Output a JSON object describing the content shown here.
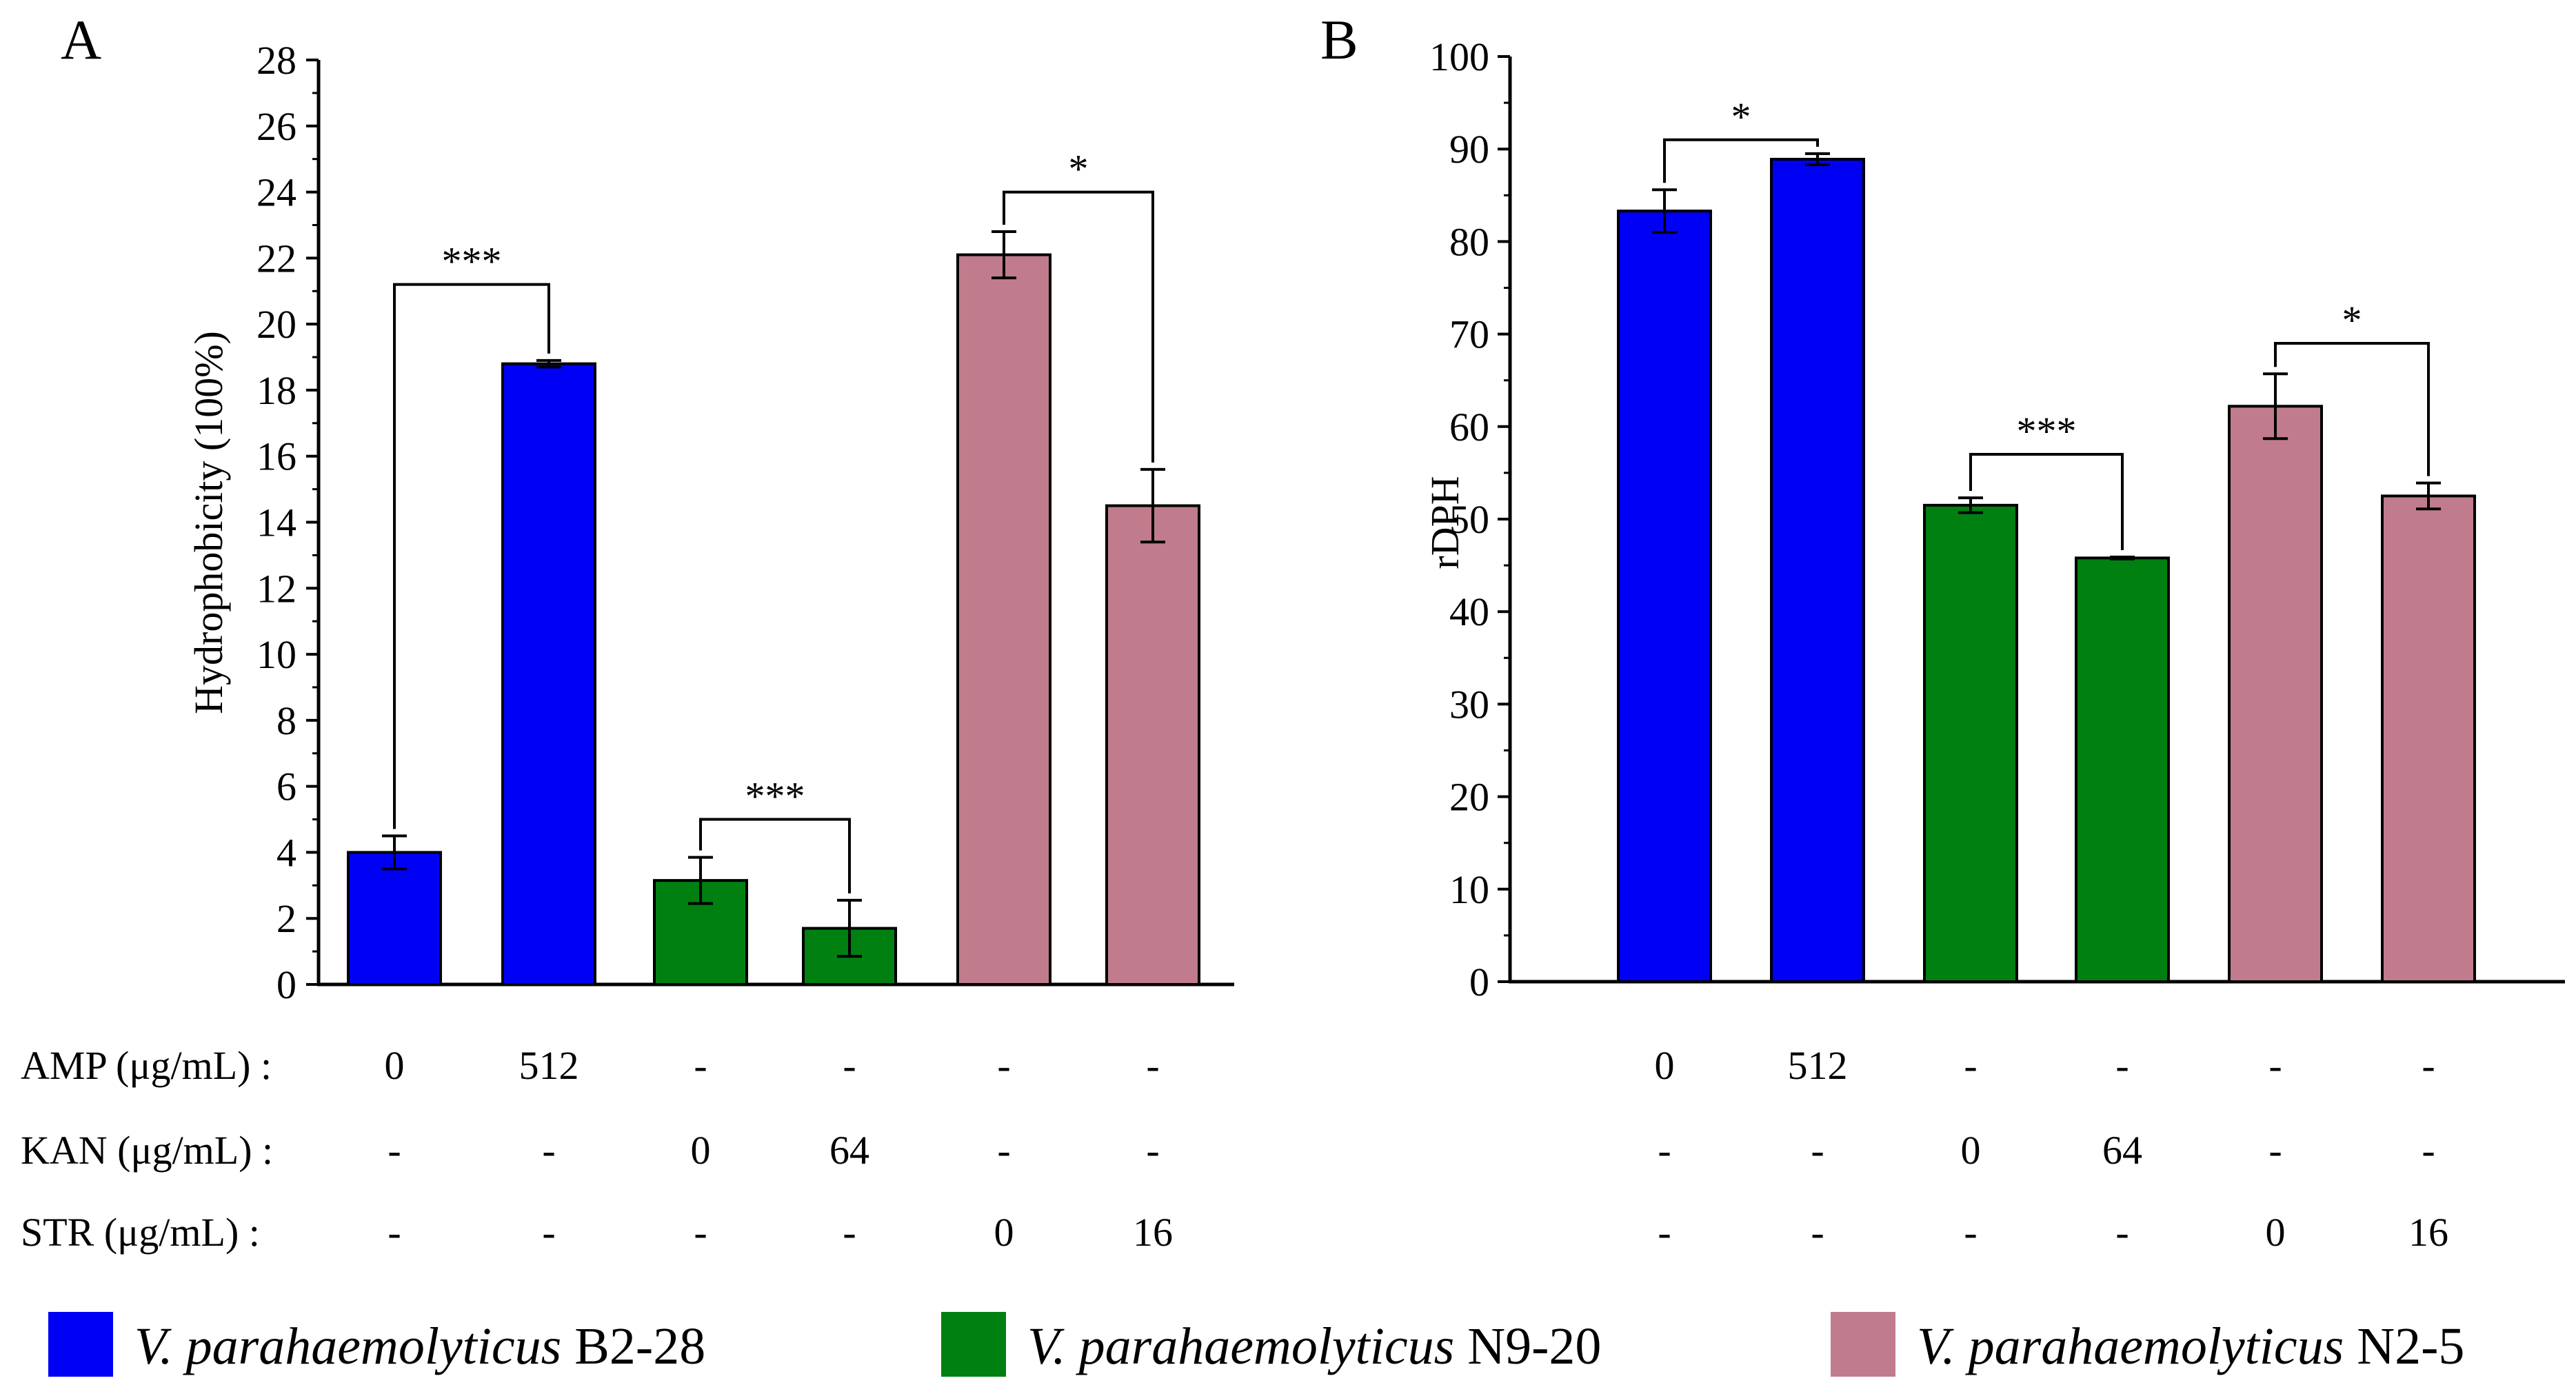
{
  "chart_data": [
    {
      "panel": "A",
      "type": "bar",
      "ylabel": "Hydrophobicity (100%)",
      "xlabel": "",
      "ylim": [
        0,
        28
      ],
      "yticks": [
        0,
        2,
        4,
        6,
        8,
        10,
        12,
        14,
        16,
        18,
        20,
        22,
        24,
        26,
        28
      ],
      "grid": false,
      "bars": [
        {
          "strain": "B2-28",
          "value": 4.0,
          "error": 0.5
        },
        {
          "strain": "B2-28",
          "value": 18.8,
          "error": 0.1
        },
        {
          "strain": "N9-20",
          "value": 3.15,
          "error": 0.7
        },
        {
          "strain": "N9-20",
          "value": 1.7,
          "error": 0.85
        },
        {
          "strain": "N2-5",
          "value": 22.1,
          "error": 0.7
        },
        {
          "strain": "N2-5",
          "value": 14.5,
          "error": 1.1
        }
      ],
      "significance": [
        {
          "from": 0,
          "to": 1,
          "label": "***",
          "level": 21.2
        },
        {
          "from": 2,
          "to": 3,
          "label": "***",
          "level": 5.0
        },
        {
          "from": 4,
          "to": 5,
          "label": "*",
          "level": 24.0
        }
      ]
    },
    {
      "panel": "B",
      "type": "bar",
      "ylabel": "rDPH",
      "xlabel": "",
      "ylim": [
        0,
        100
      ],
      "yticks": [
        0,
        10,
        20,
        30,
        40,
        50,
        60,
        70,
        80,
        90,
        100
      ],
      "grid": false,
      "bars": [
        {
          "strain": "B2-28",
          "value": 83.3,
          "error": 2.3
        },
        {
          "strain": "B2-28",
          "value": 88.9,
          "error": 0.6
        },
        {
          "strain": "N9-20",
          "value": 51.5,
          "error": 0.8
        },
        {
          "strain": "N9-20",
          "value": 45.8,
          "error": 0.1
        },
        {
          "strain": "N2-5",
          "value": 62.2,
          "error": 3.5
        },
        {
          "strain": "N2-5",
          "value": 52.5,
          "error": 1.4
        }
      ],
      "significance": [
        {
          "from": 0,
          "to": 1,
          "label": "*",
          "level": 91.0
        },
        {
          "from": 2,
          "to": 3,
          "label": "***",
          "level": 57.0
        },
        {
          "from": 4,
          "to": 5,
          "label": "*",
          "level": 69.0
        }
      ]
    }
  ],
  "conditions": [
    {
      "label": "AMP (μg/mL) :",
      "values": [
        "0",
        "512",
        "-",
        "-",
        "-",
        "-"
      ]
    },
    {
      "label": "KAN (μg/mL) :",
      "values": [
        "-",
        "-",
        "0",
        "64",
        "-",
        "-"
      ]
    },
    {
      "label": "STR  (μg/mL) :",
      "values": [
        "-",
        "-",
        "-",
        "-",
        "0",
        "16"
      ]
    }
  ],
  "legend": [
    {
      "species": "V. parahaemolyticus",
      "strain": "B2-28",
      "color": "#0000f5"
    },
    {
      "species": "V. parahaemolyticus",
      "strain": "N9-20",
      "color": "#008010"
    },
    {
      "species": "V. parahaemolyticus",
      "strain": "N2-5",
      "color": "#c07c8c"
    }
  ],
  "colors": {
    "B2-28": "#0000f5",
    "N9-20": "#008010",
    "N2-5": "#c07c8c"
  }
}
